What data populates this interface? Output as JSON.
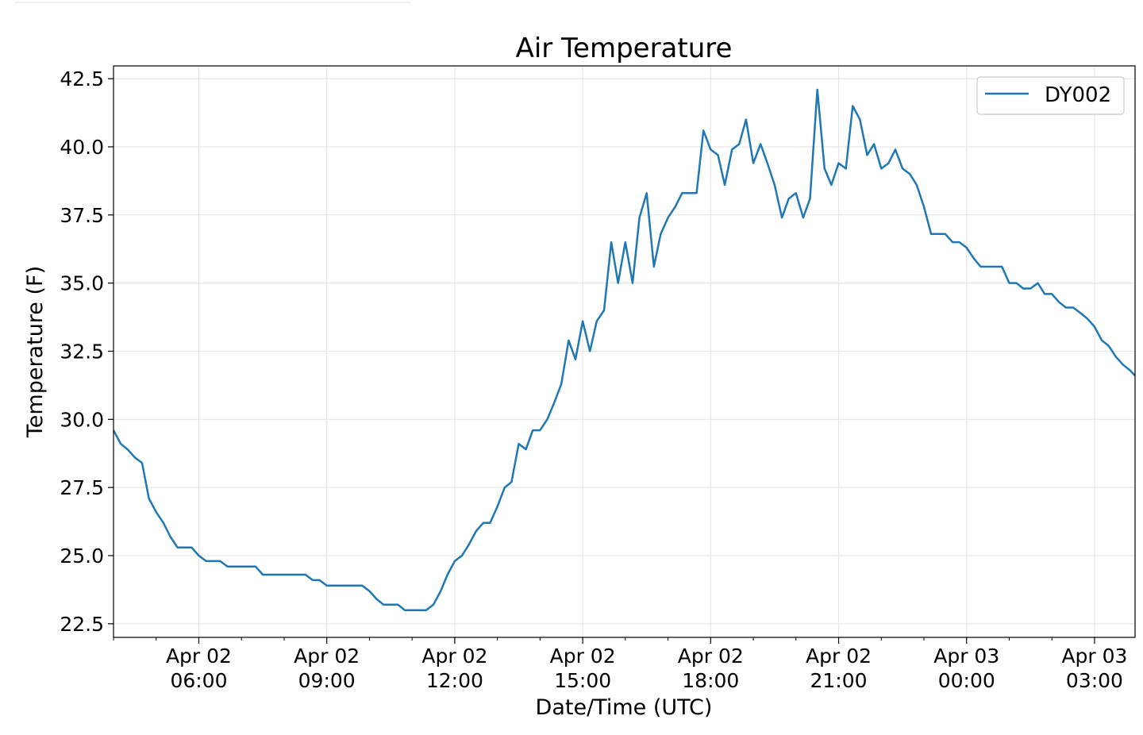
{
  "chart_data": {
    "type": "line",
    "title": "Air Temperature",
    "xlabel": "Date/Time (UTC)",
    "ylabel": "Temperature (F)",
    "x_ticks": [
      {
        "line1": "Apr 02",
        "line2": "06:00",
        "hour": 6
      },
      {
        "line1": "Apr 02",
        "line2": "09:00",
        "hour": 9
      },
      {
        "line1": "Apr 02",
        "line2": "12:00",
        "hour": 12
      },
      {
        "line1": "Apr 02",
        "line2": "15:00",
        "hour": 15
      },
      {
        "line1": "Apr 02",
        "line2": "18:00",
        "hour": 18
      },
      {
        "line1": "Apr 02",
        "line2": "21:00",
        "hour": 21
      },
      {
        "line1": "Apr 03",
        "line2": "00:00",
        "hour": 24
      },
      {
        "line1": "Apr 03",
        "line2": "03:00",
        "hour": 27
      }
    ],
    "y_ticks": [
      "22.5",
      "25.0",
      "27.5",
      "30.0",
      "32.5",
      "35.0",
      "37.5",
      "40.0",
      "42.5"
    ],
    "xlim_hours": [
      4.0,
      27.95
    ],
    "ylim": [
      22.0,
      42.97
    ],
    "grid": true,
    "legend_position": "upper right",
    "series": [
      {
        "name": "DY002",
        "color": "#1f77b4",
        "x_hours": [
          4.0,
          4.17,
          4.33,
          4.5,
          4.67,
          4.83,
          5.0,
          5.17,
          5.33,
          5.5,
          5.67,
          5.83,
          6.0,
          6.17,
          6.33,
          6.5,
          6.67,
          6.83,
          7.0,
          7.17,
          7.33,
          7.5,
          7.67,
          7.83,
          8.0,
          8.17,
          8.33,
          8.5,
          8.67,
          8.83,
          9.0,
          9.17,
          9.33,
          9.5,
          9.67,
          9.83,
          10.0,
          10.17,
          10.33,
          10.5,
          10.67,
          10.83,
          11.0,
          11.17,
          11.33,
          11.5,
          11.67,
          11.83,
          12.0,
          12.17,
          12.33,
          12.5,
          12.67,
          12.83,
          13.0,
          13.17,
          13.33,
          13.5,
          13.67,
          13.83,
          14.0,
          14.17,
          14.33,
          14.5,
          14.67,
          14.83,
          15.0,
          15.17,
          15.33,
          15.5,
          15.67,
          15.83,
          16.0,
          16.17,
          16.33,
          16.5,
          16.67,
          16.83,
          17.0,
          17.17,
          17.33,
          17.5,
          17.67,
          17.83,
          18.0,
          18.17,
          18.33,
          18.5,
          18.67,
          18.83,
          19.0,
          19.17,
          19.33,
          19.5,
          19.67,
          19.83,
          20.0,
          20.17,
          20.33,
          20.5,
          20.67,
          20.83,
          21.0,
          21.17,
          21.33,
          21.5,
          21.67,
          21.83,
          22.0,
          22.17,
          22.33,
          22.5,
          22.67,
          22.83,
          23.0,
          23.17,
          23.33,
          23.5,
          23.67,
          23.83,
          24.0,
          24.17,
          24.33,
          24.5,
          24.67,
          24.83,
          25.0,
          25.17,
          25.33,
          25.5,
          25.67,
          25.83,
          26.0,
          26.17,
          26.33,
          26.5,
          26.67,
          26.83,
          27.0,
          27.17,
          27.33,
          27.5,
          27.67,
          27.83,
          27.95
        ],
        "values": [
          29.6,
          29.1,
          28.9,
          28.6,
          28.4,
          27.1,
          26.6,
          26.2,
          25.7,
          25.3,
          25.3,
          25.3,
          25.0,
          24.8,
          24.8,
          24.8,
          24.6,
          24.6,
          24.6,
          24.6,
          24.6,
          24.3,
          24.3,
          24.3,
          24.3,
          24.3,
          24.3,
          24.3,
          24.1,
          24.1,
          23.9,
          23.9,
          23.9,
          23.9,
          23.9,
          23.9,
          23.7,
          23.4,
          23.2,
          23.2,
          23.2,
          23.0,
          23.0,
          23.0,
          23.0,
          23.2,
          23.7,
          24.3,
          24.8,
          25.0,
          25.4,
          25.9,
          26.2,
          26.2,
          26.8,
          27.5,
          27.7,
          29.1,
          28.9,
          29.6,
          29.6,
          30.0,
          30.6,
          31.3,
          32.9,
          32.2,
          33.6,
          32.5,
          33.6,
          34.0,
          36.5,
          35.0,
          36.5,
          35.0,
          37.4,
          38.3,
          35.6,
          36.8,
          37.4,
          37.8,
          38.3,
          38.3,
          38.3,
          40.6,
          39.9,
          39.7,
          38.6,
          39.9,
          40.1,
          41.0,
          39.4,
          40.1,
          39.4,
          38.6,
          37.4,
          38.1,
          38.3,
          37.4,
          38.1,
          42.1,
          39.2,
          38.6,
          39.4,
          39.2,
          41.5,
          41.0,
          39.7,
          40.1,
          39.2,
          39.4,
          39.9,
          39.2,
          39.0,
          38.6,
          37.8,
          36.8,
          36.8,
          36.8,
          36.5,
          36.5,
          36.3,
          35.9,
          35.6,
          35.6,
          35.6,
          35.6,
          35.0,
          35.0,
          34.8,
          34.8,
          35.0,
          34.6,
          34.6,
          34.3,
          34.1,
          34.1,
          33.9,
          33.7,
          33.4,
          32.9,
          32.7,
          32.3,
          32.0,
          31.8,
          31.6
        ]
      }
    ]
  }
}
